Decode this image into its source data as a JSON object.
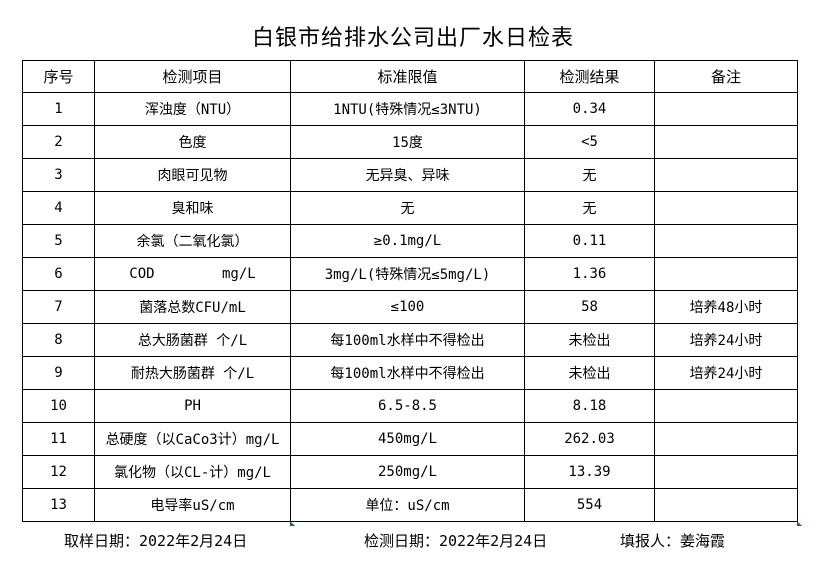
{
  "title": "白银市给排水公司出厂水日检表",
  "headers": [
    "序号",
    "检测项目",
    "标准限值",
    "检测结果",
    "备注"
  ],
  "rows": [
    [
      "1",
      "浑浊度（NTU）",
      "1NTU(特殊情况≤3NTU)",
      "0.34",
      ""
    ],
    [
      "2",
      "色度",
      "15度",
      "<5",
      ""
    ],
    [
      "3",
      "肉眼可见物",
      "无异臭、异味",
      "无",
      ""
    ],
    [
      "4",
      "臭和味",
      "无",
      "无",
      ""
    ],
    [
      "5",
      "余氯（二氧化氯）",
      "≥0.1mg/L",
      "0.11",
      ""
    ],
    [
      "6",
      "COD        mg/L",
      "3mg/L(特殊情况≤5mg/L)",
      "1.36",
      ""
    ],
    [
      "7",
      "菌落总数CFU/mL",
      "≤100",
      "58",
      "培养48小时"
    ],
    [
      "8",
      "总大肠菌群 个/L",
      "每100ml水样中不得检出",
      "未检出",
      "培养24小时"
    ],
    [
      "9",
      "耐热大肠菌群 个/L",
      "每100ml水样中不得检出",
      "未检出",
      "培养24小时"
    ],
    [
      "10",
      "PH",
      "6.5-8.5",
      "8.18",
      ""
    ],
    [
      "11",
      "总硬度（以CaCo3计）mg/L",
      "450mg/L",
      "262.03",
      ""
    ],
    [
      "12",
      "氯化物（以CL-计）mg/L",
      "250mg/L",
      "13.39",
      ""
    ],
    [
      "13",
      "电导率uS/cm",
      "单位：uS/cm",
      "554",
      ""
    ]
  ],
  "footer": {
    "sampling_date": "取样日期：2022年2月24日",
    "test_date": "检测日期：2022年2月24日",
    "reporter": "填报人：姜海霞"
  }
}
